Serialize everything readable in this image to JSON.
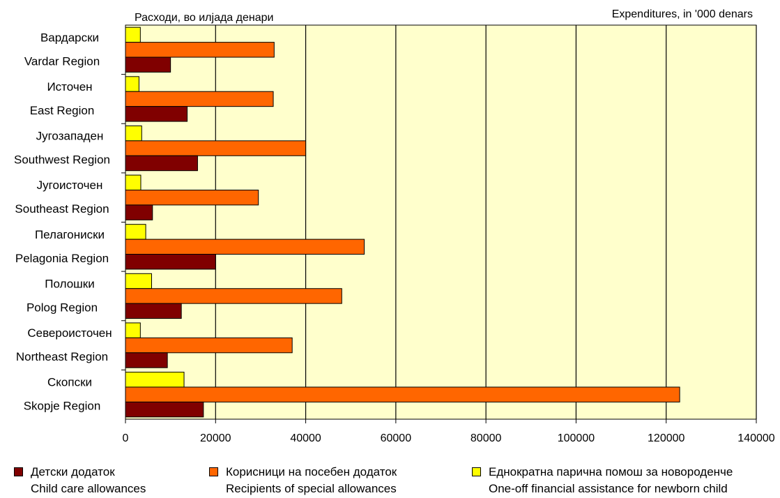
{
  "chart_data": {
    "type": "bar",
    "orientation": "horizontal",
    "title_left": "Расходи, во илјада денари",
    "title_right": "Expenditures, in '000 denars",
    "categories": [
      {
        "mk": "Вардарски",
        "en": "Vardar Region"
      },
      {
        "mk": "Источен",
        "en": "East Region"
      },
      {
        "mk": "Југозападен",
        "en": "Southwest Region"
      },
      {
        "mk": "Југоисточен",
        "en": "Southeast Region"
      },
      {
        "mk": "Пелагониски",
        "en": "Pelagonia Region"
      },
      {
        "mk": "Полошки",
        "en": "Polog Region"
      },
      {
        "mk": "Североисточен",
        "en": "Northeast Region"
      },
      {
        "mk": "Скопски",
        "en": "Skopje Region"
      }
    ],
    "series": [
      {
        "name_mk": "Еднократна парична помош за новороденче",
        "name_en": "One-off financial assistance for newborn child",
        "color": "#FFFF00",
        "values": [
          3300,
          3000,
          3600,
          3400,
          4500,
          5800,
          3300,
          13000
        ]
      },
      {
        "name_mk": "Корисници на посебен додаток",
        "name_en": "Recipients of special allowances",
        "color": "#FF6600",
        "values": [
          33000,
          32800,
          40000,
          29500,
          53000,
          48000,
          37000,
          123000
        ]
      },
      {
        "name_mk": "Детски додаток",
        "name_en": "Child care allowances",
        "color": "#800000",
        "values": [
          10000,
          13700,
          16000,
          6000,
          20000,
          12400,
          9300,
          17300
        ]
      }
    ],
    "xlim": [
      0,
      140000
    ],
    "xticks": [
      "0",
      "20000",
      "40000",
      "60000",
      "80000",
      "100000",
      "120000",
      "140000"
    ],
    "grid": true,
    "plot_background": "#FFFFCC",
    "legend_position": "bottom",
    "legend_order": [
      2,
      1,
      0
    ]
  }
}
